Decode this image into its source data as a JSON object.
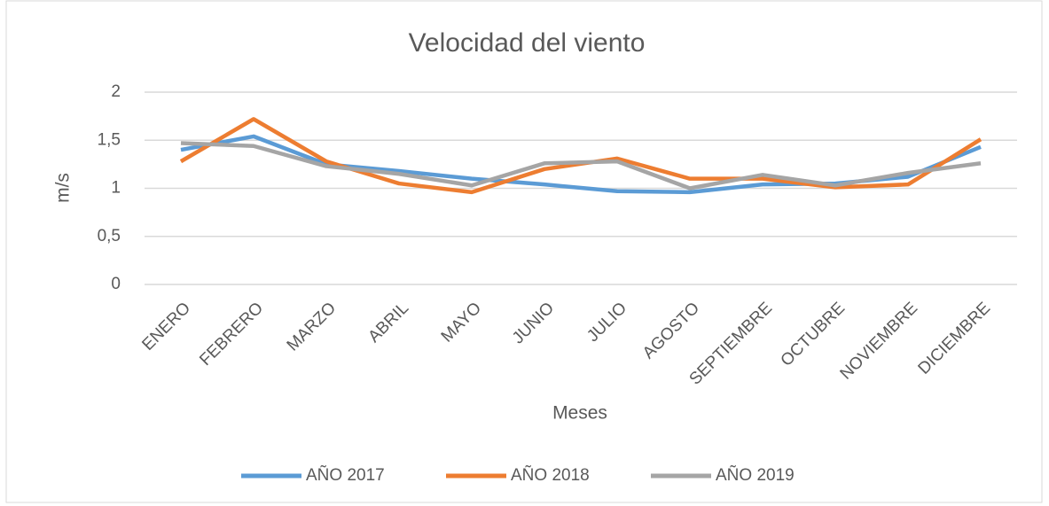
{
  "chart_data": {
    "type": "line",
    "title": "Velocidad del viento",
    "xlabel": "Meses",
    "ylabel": "m/s",
    "categories": [
      "ENERO",
      "FEBRERO",
      "MARZO",
      "ABRIL",
      "MAYO",
      "JUNIO",
      "JULIO",
      "AGOSTO",
      "SEPTIEMBRE",
      "OCTUBRE",
      "NOVIEMBRE",
      "DICIEMBRE"
    ],
    "series": [
      {
        "name": "AÑO 2017",
        "color": "#5b9bd5",
        "values": [
          1.4,
          1.54,
          1.25,
          1.18,
          1.1,
          1.04,
          0.97,
          0.96,
          1.04,
          1.05,
          1.12,
          1.43
        ]
      },
      {
        "name": "AÑO 2018",
        "color": "#ed7d31",
        "values": [
          1.28,
          1.72,
          1.28,
          1.05,
          0.96,
          1.2,
          1.31,
          1.1,
          1.1,
          1.01,
          1.04,
          1.51
        ]
      },
      {
        "name": "AÑO 2019",
        "color": "#a5a5a5",
        "values": [
          1.47,
          1.44,
          1.23,
          1.15,
          1.03,
          1.26,
          1.28,
          1.0,
          1.14,
          1.03,
          1.16,
          1.26
        ]
      }
    ],
    "ylim": [
      0,
      2
    ],
    "yticks": [
      0,
      {
        "value": 0.5,
        "label": "0,5"
      },
      1,
      {
        "value": 1.5,
        "label": "1,5"
      },
      2
    ],
    "grid": true,
    "legend": "bottom"
  }
}
